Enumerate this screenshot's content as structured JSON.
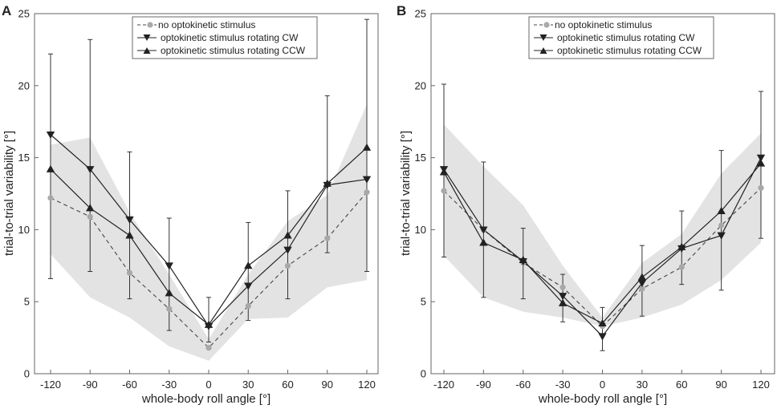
{
  "chart_data": [
    {
      "type": "line",
      "panel": "A",
      "xlabel": "whole-body roll angle [°]",
      "ylabel": "trial-to-trial variability [°]",
      "xlim": [
        -120,
        120
      ],
      "ylim": [
        0,
        25
      ],
      "x": [
        -120,
        -90,
        -60,
        -30,
        0,
        30,
        60,
        90,
        120
      ],
      "x_tick_labels": [
        "-120",
        "-90",
        "-60",
        "-30",
        "0",
        "30",
        "60",
        "90",
        "120"
      ],
      "y_ticks": [
        0,
        5,
        10,
        15,
        20,
        25
      ],
      "y_tick_labels": [
        "0",
        "5",
        "10",
        "15",
        "20",
        "25"
      ],
      "band_lower": [
        8.3,
        5.3,
        3.9,
        1.9,
        0.9,
        3.8,
        3.9,
        6.0,
        6.5
      ],
      "band_upper": [
        15.9,
        16.4,
        11.2,
        6.9,
        2.4,
        6.9,
        10.6,
        12.4,
        18.7
      ],
      "series": [
        {
          "name": "no optokinetic stimulus",
          "marker": "circle",
          "style": "dashed",
          "values": [
            12.2,
            10.9,
            7.0,
            4.5,
            1.8,
            4.7,
            7.5,
            9.4,
            12.6
          ]
        },
        {
          "name": "optokinetic stimulus rotating CW",
          "marker": "triangle-down",
          "style": "solid",
          "values": [
            16.6,
            14.2,
            10.7,
            7.5,
            3.3,
            6.1,
            8.6,
            13.1,
            13.5
          ],
          "err_lower": [
            6.6,
            7.1,
            5.2,
            3.0,
            2.2,
            3.7,
            5.2,
            8.4,
            7.1
          ],
          "err_upper": [
            22.2,
            23.2,
            15.4,
            10.8,
            5.3,
            10.5,
            12.7,
            19.3,
            24.6
          ]
        },
        {
          "name": "optokinetic stimulus rotating CCW",
          "marker": "triangle-up",
          "style": "solid",
          "values": [
            14.2,
            11.5,
            9.6,
            5.6,
            3.4,
            7.5,
            9.6,
            13.2,
            15.7
          ]
        }
      ],
      "legend_position": "top-center"
    },
    {
      "type": "line",
      "panel": "B",
      "xlabel": "whole-body roll angle [°]",
      "ylabel": "trial-to-trial variability [°]",
      "xlim": [
        -120,
        120
      ],
      "ylim": [
        0,
        25
      ],
      "x": [
        -120,
        -90,
        -60,
        -30,
        0,
        30,
        60,
        90,
        120
      ],
      "x_tick_labels": [
        "-120",
        "-90",
        "-60",
        "-30",
        "0",
        "30",
        "60",
        "90",
        "120"
      ],
      "y_ticks": [
        0,
        5,
        10,
        15,
        20,
        25
      ],
      "y_tick_labels": [
        "0",
        "5",
        "10",
        "15",
        "20",
        "25"
      ],
      "band_lower": [
        8.2,
        5.3,
        4.3,
        3.9,
        3.3,
        3.9,
        4.8,
        6.5,
        9.1
      ],
      "band_upper": [
        17.3,
        14.4,
        11.7,
        7.5,
        3.9,
        7.7,
        9.7,
        13.9,
        16.7
      ],
      "series": [
        {
          "name": "no optokinetic stimulus",
          "marker": "circle",
          "style": "dashed",
          "values": [
            12.7,
            10.0,
            7.7,
            6.0,
            3.3,
            5.9,
            7.4,
            10.3,
            12.9
          ]
        },
        {
          "name": "optokinetic stimulus rotating CW",
          "marker": "triangle-down",
          "style": "solid",
          "values": [
            14.2,
            10.0,
            7.8,
            5.4,
            2.6,
            6.3,
            8.7,
            9.6,
            15.0
          ],
          "err_lower": [
            8.1,
            5.3,
            5.2,
            3.6,
            1.6,
            4.0,
            6.2,
            5.8,
            9.4
          ],
          "err_upper": [
            20.1,
            14.7,
            10.1,
            6.9,
            4.6,
            8.9,
            11.3,
            15.5,
            19.6
          ]
        },
        {
          "name": "optokinetic stimulus rotating CCW",
          "marker": "triangle-up",
          "style": "solid",
          "values": [
            14.0,
            9.1,
            7.9,
            4.9,
            3.5,
            6.7,
            8.8,
            11.3,
            14.6
          ]
        }
      ],
      "legend_position": "top-center"
    }
  ]
}
